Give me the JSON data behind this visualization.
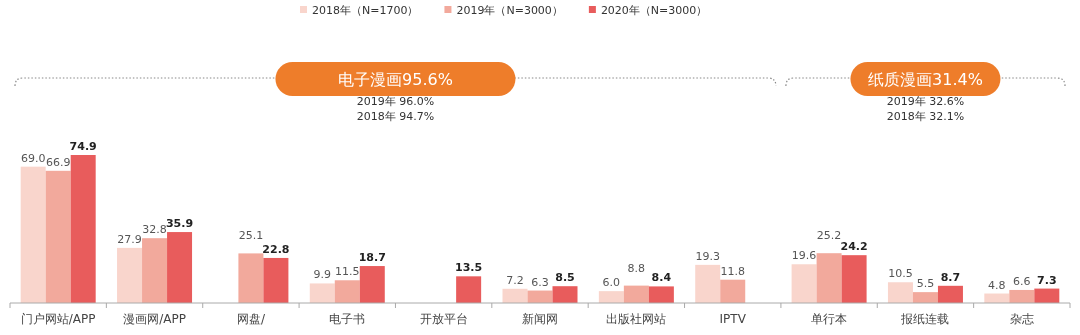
{
  "chart_data": {
    "type": "bar",
    "categories": [
      "门户网站/APP",
      "漫画网/APP",
      "网盘/",
      "电子书",
      "开放平台",
      "新闻网",
      "出版社网站",
      "IPTV",
      "单行本",
      "报纸连载",
      "杂志"
    ],
    "series": [
      {
        "name": "2018年（N=1700）",
        "color": "#f9d5cc",
        "values": [
          69.0,
          27.9,
          null,
          9.9,
          null,
          7.2,
          6.0,
          19.3,
          19.6,
          10.5,
          4.8
        ],
        "value_labels": [
          "69.0",
          "27.9",
          null,
          "9.9",
          null,
          "7.2",
          "6.0",
          "19.3",
          "19.6",
          "10.5",
          "4.8"
        ]
      },
      {
        "name": "2019年（N=3000）",
        "color": "#f2a99c",
        "values": [
          66.9,
          32.8,
          25.1,
          11.5,
          null,
          6.3,
          8.8,
          11.8,
          25.2,
          5.5,
          6.6
        ],
        "value_labels": [
          "66.9",
          "32.8",
          "25.1",
          "11.5",
          null,
          "6.3",
          "8.8",
          "11.8",
          "25.2",
          "5.5",
          "6.6"
        ]
      },
      {
        "name": "2020年（N=3000）",
        "color": "#e85c5c",
        "values": [
          74.9,
          35.9,
          22.8,
          18.7,
          13.5,
          8.5,
          8.4,
          null,
          24.2,
          8.7,
          7.3
        ],
        "value_labels": [
          "74.9",
          "35.9",
          "22.8",
          "18.7",
          "13.5",
          "8.5",
          "8.4",
          null,
          "24.2",
          "8.7",
          "7.3"
        ]
      }
    ],
    "legend": "top",
    "annotations": [
      "电子漫画95.6%",
      "2019年 96.0%",
      "2018年 94.7%",
      "纸质漫画31.4%",
      "2019年 32.6%",
      "2018年 32.1%"
    ]
  }
}
